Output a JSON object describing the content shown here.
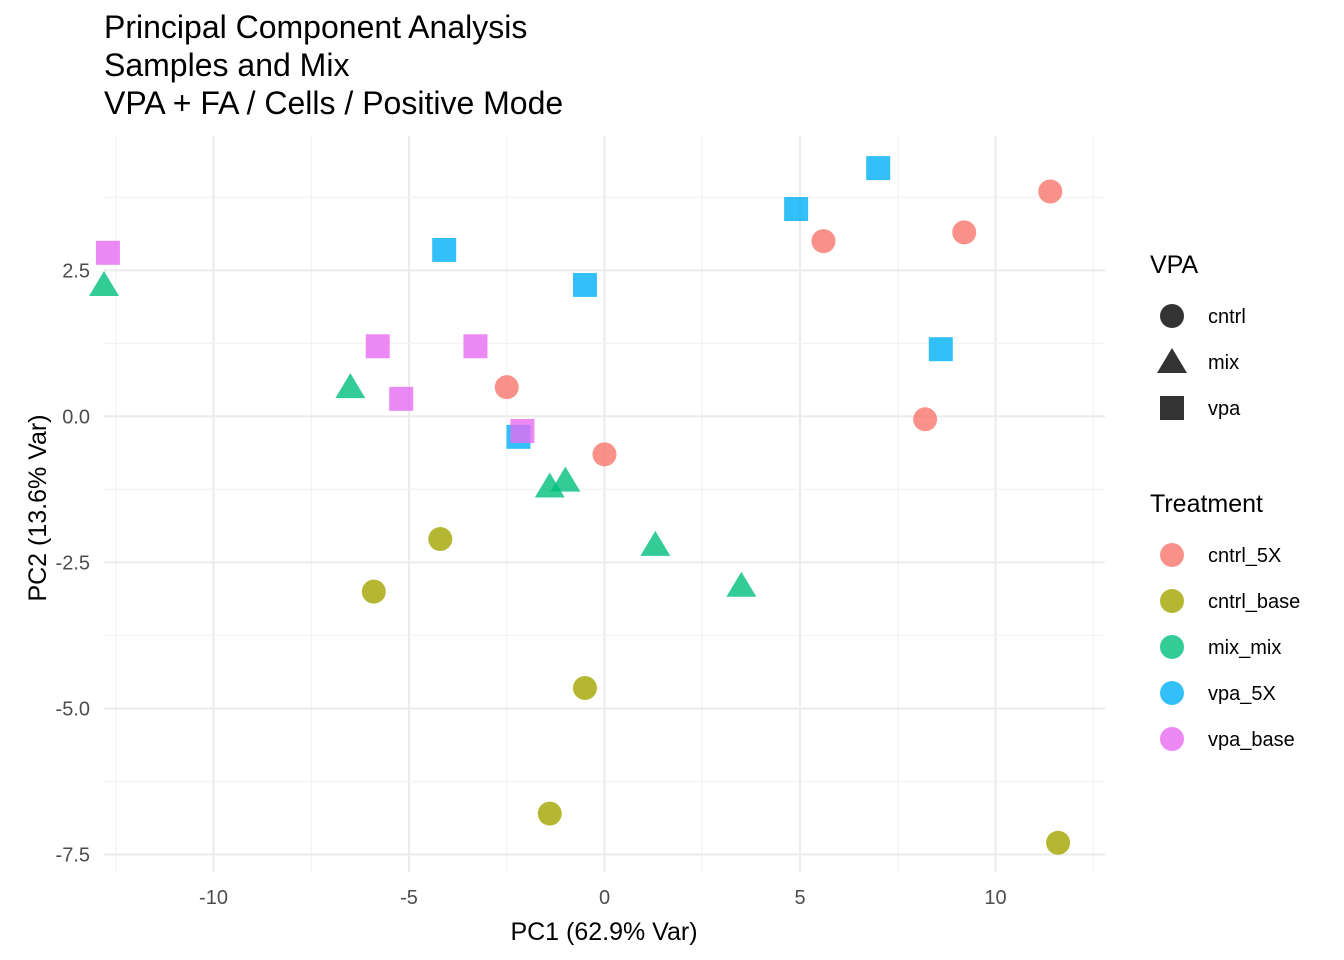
{
  "chart_data": {
    "type": "scatter",
    "title_lines": [
      "Principal Component Analysis",
      "Samples and Mix",
      "VPA + FA / Cells / Positive Mode"
    ],
    "xlabel": "PC1 (62.9% Var)",
    "ylabel": "PC2 (13.6% Var)",
    "xlim": [
      -12.8,
      12.8
    ],
    "ylim": [
      -7.8,
      4.8
    ],
    "x_ticks": [
      -10,
      -5,
      0,
      5,
      10
    ],
    "x_tick_labels": [
      "-10",
      "-5",
      "0",
      "5",
      "10"
    ],
    "y_ticks": [
      2.5,
      0.0,
      -2.5,
      -5.0,
      -7.5
    ],
    "y_tick_labels": [
      "2.5",
      "0.0",
      "-2.5",
      "-5.0",
      "-7.5"
    ],
    "grid": true,
    "legend_placement": "right",
    "shape_legend": {
      "title": "VPA",
      "items": [
        {
          "label": "cntrl",
          "shape": "circle"
        },
        {
          "label": "mix",
          "shape": "triangle"
        },
        {
          "label": "vpa",
          "shape": "square"
        }
      ]
    },
    "color_legend": {
      "title": "Treatment",
      "items": [
        {
          "label": "cntrl_5X",
          "color": "#F8766D"
        },
        {
          "label": "cntrl_base",
          "color": "#A3A500"
        },
        {
          "label": "mix_mix",
          "color": "#00BF7D"
        },
        {
          "label": "vpa_5X",
          "color": "#00B0F6"
        },
        {
          "label": "vpa_base",
          "color": "#E76BF3"
        }
      ]
    },
    "series": [
      {
        "name": "cntrl_5X",
        "shape": "circle",
        "color": "#F8766D",
        "points": [
          [
            11.4,
            3.85
          ],
          [
            9.2,
            3.15
          ],
          [
            5.6,
            3.0
          ],
          [
            8.2,
            -0.05
          ],
          [
            0.0,
            -0.65
          ],
          [
            -2.5,
            0.5
          ]
        ]
      },
      {
        "name": "cntrl_base",
        "shape": "circle",
        "color": "#A3A500",
        "points": [
          [
            -4.2,
            -2.1
          ],
          [
            -5.9,
            -3.0
          ],
          [
            -0.5,
            -4.65
          ],
          [
            -1.4,
            -6.8
          ],
          [
            11.6,
            -7.3
          ]
        ]
      },
      {
        "name": "mix_mix",
        "shape": "triangle",
        "color": "#00BF7D",
        "points": [
          [
            -12.8,
            2.25
          ],
          [
            -6.5,
            0.5
          ],
          [
            -1.4,
            -1.2
          ],
          [
            -1.0,
            -1.1
          ],
          [
            1.3,
            -2.2
          ],
          [
            3.5,
            -2.9
          ]
        ]
      },
      {
        "name": "vpa_5X",
        "shape": "square",
        "color": "#00B0F6",
        "points": [
          [
            7.0,
            4.25
          ],
          [
            4.9,
            3.55
          ],
          [
            -4.1,
            2.85
          ],
          [
            -0.5,
            2.25
          ],
          [
            8.6,
            1.15
          ],
          [
            -2.2,
            -0.35
          ]
        ]
      },
      {
        "name": "vpa_base",
        "shape": "square",
        "color": "#E76BF3",
        "points": [
          [
            -12.7,
            2.8
          ],
          [
            -5.8,
            1.2
          ],
          [
            -3.3,
            1.2
          ],
          [
            -5.2,
            0.3
          ],
          [
            -2.1,
            -0.25
          ]
        ]
      }
    ]
  }
}
